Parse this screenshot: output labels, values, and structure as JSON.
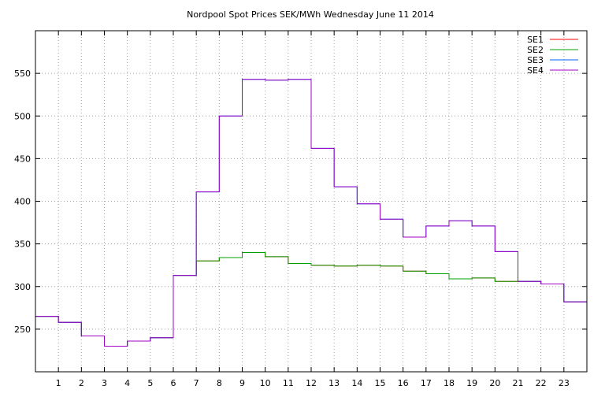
{
  "chart_data": {
    "type": "line",
    "step": true,
    "title": "Nordpool Spot Prices SEK/MWh Wednesday June 11 2014",
    "xlabel": "",
    "ylabel": "",
    "xlim": [
      0,
      24
    ],
    "ylim": [
      200,
      600
    ],
    "x_ticks": [
      1,
      2,
      3,
      4,
      5,
      6,
      7,
      8,
      9,
      10,
      11,
      12,
      13,
      14,
      15,
      16,
      17,
      18,
      19,
      20,
      21,
      22,
      23
    ],
    "y_ticks": [
      250,
      300,
      350,
      400,
      450,
      500,
      550
    ],
    "grid": true,
    "legend_position": "top-right",
    "x": [
      0,
      1,
      2,
      3,
      4,
      5,
      6,
      7,
      8,
      9,
      10,
      11,
      12,
      13,
      14,
      15,
      16,
      17,
      18,
      19,
      20,
      21,
      22,
      23
    ],
    "series": [
      {
        "name": "SE1",
        "color": "#ff0000",
        "values": [
          265,
          258,
          242,
          230,
          236,
          240,
          313,
          330,
          334,
          340,
          335,
          327,
          325,
          324,
          325,
          324,
          318,
          315,
          309,
          310,
          306,
          306,
          303,
          282
        ]
      },
      {
        "name": "SE2",
        "color": "#00a000",
        "values": [
          265,
          258,
          242,
          230,
          236,
          240,
          313,
          330,
          334,
          340,
          335,
          327,
          325,
          324,
          325,
          324,
          318,
          315,
          309,
          310,
          306,
          306,
          303,
          282
        ]
      },
      {
        "name": "SE3",
        "color": "#0060ff",
        "values": [
          265,
          258,
          242,
          230,
          236,
          240,
          313,
          411,
          500,
          543,
          542,
          543,
          462,
          417,
          397,
          379,
          358,
          371,
          377,
          371,
          341,
          306,
          303,
          282
        ]
      },
      {
        "name": "SE4",
        "color": "#a000c0",
        "values": [
          265,
          258,
          242,
          230,
          236,
          240,
          313,
          411,
          500,
          543,
          542,
          543,
          462,
          417,
          397,
          379,
          358,
          371,
          377,
          371,
          341,
          306,
          303,
          282
        ]
      }
    ]
  }
}
